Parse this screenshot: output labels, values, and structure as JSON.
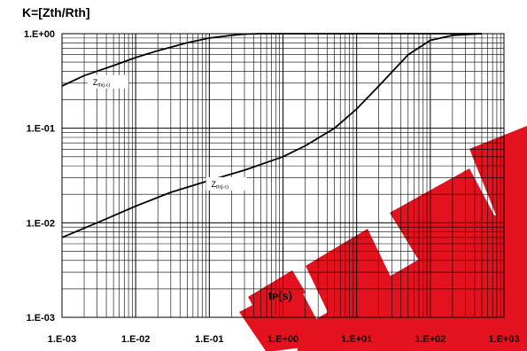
{
  "chart_data": {
    "type": "line",
    "title": "K=[Zth/Rth]",
    "xlabel": "tP(s)",
    "xlabel_main": "t",
    "xlabel_sub": "P",
    "xlabel_unit": "(s)",
    "x_scale": "log",
    "y_scale": "log",
    "xlim": [
      0.001,
      1000
    ],
    "ylim": [
      0.001,
      1
    ],
    "grid": true,
    "x_ticks": [
      "1.E-03",
      "1.E-02",
      "1.E-01",
      "1.E+00",
      "1.E+01",
      "1.E+02",
      "1.E+03"
    ],
    "y_ticks": [
      "1.E-03",
      "1.E-02",
      "1.E-01",
      "1.E+00"
    ],
    "series": [
      {
        "name": "Zth(j-c)",
        "label_main": "Z",
        "label_sub": "th(j-c)",
        "x": [
          0.001,
          0.002,
          0.005,
          0.01,
          0.02,
          0.05,
          0.1,
          0.2,
          0.3,
          0.5,
          1,
          500
        ],
        "y": [
          0.28,
          0.36,
          0.46,
          0.56,
          0.66,
          0.8,
          0.9,
          0.96,
          0.99,
          1.0,
          1.0,
          1.0
        ]
      },
      {
        "name": "Zth(j-c)",
        "label_main": "Z",
        "label_sub": "th(j-c)",
        "x": [
          0.001,
          0.003,
          0.01,
          0.03,
          0.1,
          0.3,
          1,
          2,
          5,
          10,
          20,
          50,
          100,
          200,
          500
        ],
        "y": [
          0.007,
          0.01,
          0.015,
          0.021,
          0.028,
          0.036,
          0.05,
          0.065,
          0.1,
          0.16,
          0.28,
          0.6,
          0.85,
          0.96,
          1.0
        ]
      }
    ]
  },
  "watermark": {
    "text": "EPM",
    "color": "#e30613"
  }
}
